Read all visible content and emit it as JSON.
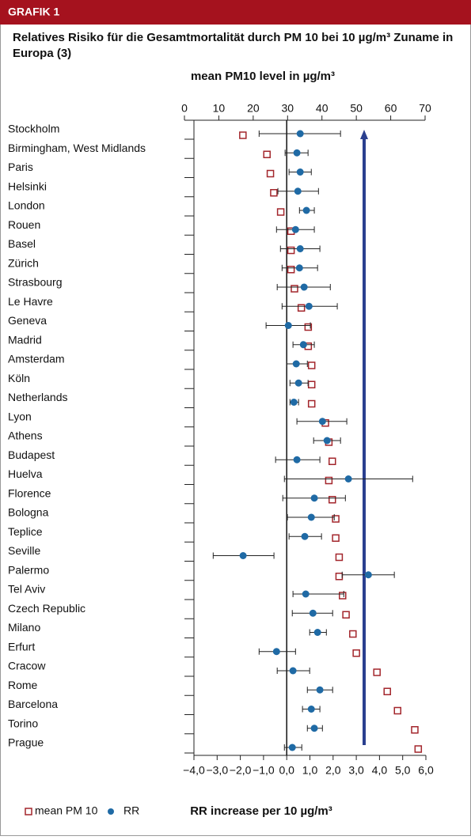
{
  "header": "GRAFIK 1",
  "chart_data": {
    "type": "scatter",
    "title": "Relatives Risiko für die Gesamtmortalität durch PM 10 bei 10 µg/m³ Zuname in Europa (3)",
    "x_label": "mean PM10 level in µg/m³",
    "x2_label": "RR increase per 10 µg/m³",
    "categories": [
      "Stockholm",
      "Birmingham, West Midlands",
      "Paris",
      "Helsinki",
      "London",
      "Rouen",
      "Basel",
      "Zürich",
      "Strasbourg",
      "Le Havre",
      "Geneva",
      "Madrid",
      "Amsterdam",
      "Köln",
      "Netherlands",
      "Lyon",
      "Athens",
      "Budapest",
      "Huelva",
      "Florence",
      "Bologna",
      "Teplice",
      "Seville",
      "Palermo",
      "Tel Aviv",
      "Czech Republic",
      "Milano",
      "Erfurt",
      "Cracow",
      "Rome",
      "Barcelona",
      "Torino",
      "Prague"
    ],
    "xlim": [
      0,
      70
    ],
    "xticks": [
      0,
      10,
      20,
      30,
      40,
      50,
      60,
      70
    ],
    "x2lim": [
      -4,
      6
    ],
    "x2ticks": [
      {
        "value": -4,
        "label": "−4,0"
      },
      {
        "value": -3,
        "label": "−3,0"
      },
      {
        "value": -2,
        "label": "−2,0"
      },
      {
        "value": -1,
        "label": "−1,0"
      },
      {
        "value": 0,
        "label": "0,0"
      },
      {
        "value": 1,
        "label": "1,0"
      },
      {
        "value": 2,
        "label": "2,0"
      },
      {
        "value": 3,
        "label": "3,0"
      },
      {
        "value": 4,
        "label": "4,0"
      },
      {
        "value": 5,
        "label": "5,0"
      },
      {
        "value": 6,
        "label": "6,0"
      }
    ],
    "series": [
      {
        "name": "mean PM 10",
        "color": "#a3262c",
        "marker": "square",
        "values": [
          17,
          24,
          25,
          26,
          28,
          31,
          31,
          31,
          32,
          34,
          36,
          36,
          37,
          37,
          37,
          41,
          42,
          43,
          42,
          43,
          44,
          44,
          45,
          45,
          46,
          47,
          49,
          50,
          56,
          59,
          62,
          67,
          68
        ]
      },
      {
        "name": "RR",
        "color": "#1f6aa5",
        "marker": "circle",
        "axis": "x2",
        "values": [
          0.58,
          0.44,
          0.58,
          0.48,
          0.85,
          0.38,
          0.58,
          0.55,
          0.75,
          0.96,
          0.07,
          0.72,
          0.41,
          0.51,
          0.31,
          1.54,
          1.74,
          0.44,
          2.66,
          1.19,
          1.06,
          0.78,
          -1.88,
          3.52,
          0.82,
          1.13,
          1.33,
          -0.44,
          0.27,
          1.43,
          1.06,
          1.19,
          0.24
        ],
        "low": [
          -1.19,
          -0.07,
          0.1,
          -0.38,
          0.55,
          -0.44,
          -0.27,
          -0.2,
          -0.41,
          -0.2,
          -0.89,
          0.27,
          0,
          0.14,
          0.14,
          0.44,
          1.16,
          -0.48,
          -0.1,
          -0.17,
          0.03,
          0.1,
          -3.17,
          2.39,
          0.27,
          0.24,
          0.99,
          -1.19,
          -0.41,
          0.89,
          0.68,
          0.89,
          -0.1
        ],
        "high": [
          2.32,
          0.92,
          1.06,
          1.37,
          1.19,
          1.19,
          1.43,
          1.33,
          1.88,
          2.18,
          1.02,
          1.19,
          0.89,
          0.92,
          0.51,
          2.59,
          2.32,
          1.43,
          5.43,
          2.53,
          2.05,
          1.5,
          -0.55,
          4.64,
          2.46,
          1.98,
          1.71,
          0.38,
          0.99,
          1.98,
          1.43,
          1.54,
          0.65
        ]
      }
    ]
  }
}
